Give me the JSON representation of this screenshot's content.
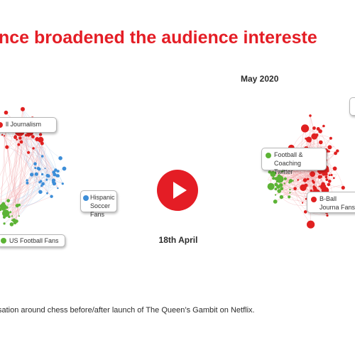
{
  "headline": "nce broadened the audience intereste",
  "after_period_label": "May 2020",
  "transition": {
    "date_label": "18th April",
    "play_icon": "play-icon",
    "accent_color": "#e41d25"
  },
  "colors": {
    "red_cluster": "#e02020",
    "blue_cluster": "#3d8ed8",
    "green_cluster": "#5cb335",
    "edge_red": "#f1a3a6",
    "edge_blue": "#a9c8ea"
  },
  "before_graph": {
    "clusters": [
      {
        "label": "ll Journalism",
        "color": "red"
      },
      {
        "label": "Hispanic Soccer Fans",
        "color": "blue"
      },
      {
        "label": "US Football Fans",
        "color": "green"
      }
    ]
  },
  "after_graph": {
    "clusters": [
      {
        "label": "Football & Coaching Twitter",
        "color": "green"
      },
      {
        "label": "B-Ball Journa Fans",
        "color": "red"
      }
    ]
  },
  "caption": "sation around chess before/after launch of The Queen’s Gambit on Netflix."
}
